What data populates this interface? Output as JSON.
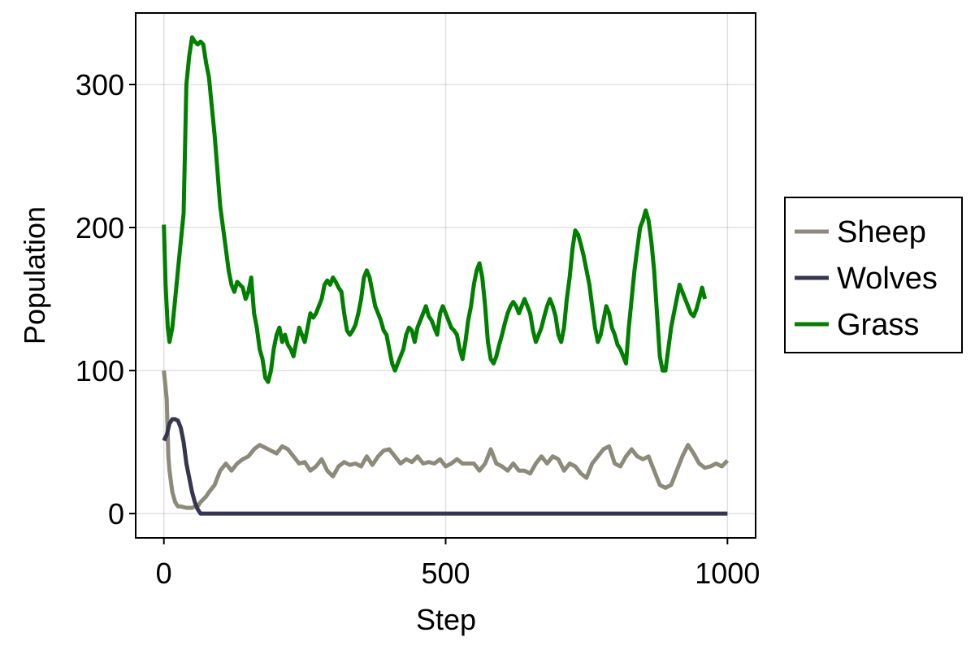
{
  "chart_data": {
    "type": "line",
    "title": "",
    "xlabel": "Step",
    "ylabel": "Population",
    "xlim": [
      -50,
      1050
    ],
    "ylim": [
      -17,
      350
    ],
    "xticks": [
      0,
      500,
      1000
    ],
    "yticks": [
      0,
      100,
      200,
      300
    ],
    "grid": true,
    "legend_position": "right",
    "series": [
      {
        "name": "Sheep",
        "color": "#8c8a7a",
        "points": [
          [
            0,
            100
          ],
          [
            5,
            80
          ],
          [
            8,
            40
          ],
          [
            10,
            30
          ],
          [
            15,
            15
          ],
          [
            20,
            8
          ],
          [
            25,
            5
          ],
          [
            30,
            5
          ],
          [
            40,
            4
          ],
          [
            50,
            4
          ],
          [
            55,
            5
          ],
          [
            60,
            5
          ],
          [
            65,
            8
          ],
          [
            70,
            10
          ],
          [
            75,
            12
          ],
          [
            80,
            15
          ],
          [
            90,
            20
          ],
          [
            100,
            30
          ],
          [
            110,
            35
          ],
          [
            120,
            30
          ],
          [
            130,
            35
          ],
          [
            140,
            38
          ],
          [
            150,
            40
          ],
          [
            160,
            45
          ],
          [
            170,
            48
          ],
          [
            180,
            46
          ],
          [
            190,
            44
          ],
          [
            200,
            42
          ],
          [
            210,
            47
          ],
          [
            220,
            45
          ],
          [
            230,
            40
          ],
          [
            240,
            35
          ],
          [
            250,
            36
          ],
          [
            260,
            30
          ],
          [
            270,
            33
          ],
          [
            280,
            38
          ],
          [
            290,
            30
          ],
          [
            300,
            26
          ],
          [
            310,
            33
          ],
          [
            320,
            36
          ],
          [
            330,
            34
          ],
          [
            340,
            35
          ],
          [
            350,
            33
          ],
          [
            360,
            40
          ],
          [
            370,
            34
          ],
          [
            380,
            40
          ],
          [
            390,
            44
          ],
          [
            400,
            45
          ],
          [
            410,
            40
          ],
          [
            420,
            35
          ],
          [
            430,
            38
          ],
          [
            440,
            36
          ],
          [
            450,
            40
          ],
          [
            460,
            35
          ],
          [
            470,
            36
          ],
          [
            480,
            35
          ],
          [
            490,
            38
          ],
          [
            500,
            33
          ],
          [
            510,
            35
          ],
          [
            520,
            38
          ],
          [
            530,
            35
          ],
          [
            540,
            35
          ],
          [
            550,
            35
          ],
          [
            560,
            30
          ],
          [
            570,
            35
          ],
          [
            580,
            45
          ],
          [
            590,
            35
          ],
          [
            600,
            33
          ],
          [
            610,
            30
          ],
          [
            620,
            35
          ],
          [
            630,
            30
          ],
          [
            640,
            30
          ],
          [
            650,
            28
          ],
          [
            660,
            35
          ],
          [
            670,
            40
          ],
          [
            680,
            35
          ],
          [
            690,
            40
          ],
          [
            700,
            38
          ],
          [
            710,
            30
          ],
          [
            720,
            35
          ],
          [
            730,
            33
          ],
          [
            740,
            28
          ],
          [
            750,
            25
          ],
          [
            760,
            35
          ],
          [
            770,
            40
          ],
          [
            780,
            45
          ],
          [
            790,
            47
          ],
          [
            800,
            35
          ],
          [
            810,
            33
          ],
          [
            820,
            40
          ],
          [
            830,
            45
          ],
          [
            840,
            40
          ],
          [
            850,
            38
          ],
          [
            860,
            40
          ],
          [
            870,
            30
          ],
          [
            880,
            20
          ],
          [
            890,
            18
          ],
          [
            900,
            20
          ],
          [
            910,
            30
          ],
          [
            920,
            40
          ],
          [
            930,
            48
          ],
          [
            940,
            42
          ],
          [
            950,
            35
          ],
          [
            960,
            32
          ],
          [
            970,
            33
          ],
          [
            980,
            35
          ],
          [
            990,
            33
          ],
          [
            1000,
            37
          ]
        ]
      },
      {
        "name": "Wolves",
        "color": "#363650",
        "points": [
          [
            0,
            51
          ],
          [
            5,
            55
          ],
          [
            10,
            63
          ],
          [
            15,
            66
          ],
          [
            20,
            66
          ],
          [
            25,
            65
          ],
          [
            30,
            60
          ],
          [
            35,
            50
          ],
          [
            40,
            35
          ],
          [
            45,
            25
          ],
          [
            50,
            15
          ],
          [
            55,
            8
          ],
          [
            60,
            3
          ],
          [
            65,
            0
          ],
          [
            1000,
            0
          ]
        ]
      },
      {
        "name": "Grass",
        "color": "#007f00",
        "points": [
          [
            0,
            202
          ],
          [
            3,
            160
          ],
          [
            7,
            130
          ],
          [
            10,
            120
          ],
          [
            15,
            130
          ],
          [
            20,
            150
          ],
          [
            25,
            170
          ],
          [
            30,
            190
          ],
          [
            35,
            210
          ],
          [
            40,
            300
          ],
          [
            45,
            320
          ],
          [
            50,
            333
          ],
          [
            55,
            330
          ],
          [
            60,
            328
          ],
          [
            65,
            330
          ],
          [
            70,
            328
          ],
          [
            75,
            315
          ],
          [
            80,
            305
          ],
          [
            85,
            285
          ],
          [
            90,
            265
          ],
          [
            95,
            240
          ],
          [
            100,
            215
          ],
          [
            105,
            200
          ],
          [
            110,
            185
          ],
          [
            115,
            170
          ],
          [
            120,
            160
          ],
          [
            125,
            155
          ],
          [
            130,
            162
          ],
          [
            135,
            160
          ],
          [
            140,
            158
          ],
          [
            145,
            150
          ],
          [
            150,
            155
          ],
          [
            155,
            165
          ],
          [
            160,
            140
          ],
          [
            165,
            130
          ],
          [
            170,
            115
          ],
          [
            175,
            108
          ],
          [
            180,
            95
          ],
          [
            185,
            92
          ],
          [
            190,
            100
          ],
          [
            195,
            115
          ],
          [
            200,
            125
          ],
          [
            205,
            130
          ],
          [
            210,
            120
          ],
          [
            215,
            125
          ],
          [
            220,
            118
          ],
          [
            225,
            115
          ],
          [
            230,
            110
          ],
          [
            235,
            120
          ],
          [
            240,
            130
          ],
          [
            245,
            125
          ],
          [
            250,
            120
          ],
          [
            255,
            130
          ],
          [
            260,
            140
          ],
          [
            265,
            137
          ],
          [
            270,
            140
          ],
          [
            275,
            145
          ],
          [
            280,
            150
          ],
          [
            285,
            160
          ],
          [
            290,
            163
          ],
          [
            295,
            160
          ],
          [
            300,
            165
          ],
          [
            305,
            162
          ],
          [
            310,
            158
          ],
          [
            315,
            155
          ],
          [
            320,
            140
          ],
          [
            325,
            128
          ],
          [
            330,
            125
          ],
          [
            335,
            128
          ],
          [
            340,
            132
          ],
          [
            345,
            140
          ],
          [
            350,
            150
          ],
          [
            355,
            165
          ],
          [
            360,
            170
          ],
          [
            365,
            165
          ],
          [
            370,
            155
          ],
          [
            375,
            145
          ],
          [
            380,
            140
          ],
          [
            385,
            135
          ],
          [
            390,
            128
          ],
          [
            395,
            125
          ],
          [
            400,
            115
          ],
          [
            405,
            105
          ],
          [
            410,
            100
          ],
          [
            415,
            105
          ],
          [
            420,
            110
          ],
          [
            425,
            115
          ],
          [
            430,
            125
          ],
          [
            435,
            130
          ],
          [
            440,
            128
          ],
          [
            445,
            120
          ],
          [
            450,
            130
          ],
          [
            455,
            135
          ],
          [
            460,
            140
          ],
          [
            465,
            145
          ],
          [
            470,
            138
          ],
          [
            475,
            135
          ],
          [
            480,
            130
          ],
          [
            485,
            125
          ],
          [
            490,
            140
          ],
          [
            495,
            145
          ],
          [
            500,
            140
          ],
          [
            505,
            135
          ],
          [
            510,
            130
          ],
          [
            515,
            128
          ],
          [
            520,
            125
          ],
          [
            525,
            115
          ],
          [
            530,
            108
          ],
          [
            535,
            120
          ],
          [
            540,
            135
          ],
          [
            545,
            145
          ],
          [
            550,
            160
          ],
          [
            555,
            170
          ],
          [
            560,
            175
          ],
          [
            565,
            165
          ],
          [
            570,
            145
          ],
          [
            575,
            120
          ],
          [
            580,
            108
          ],
          [
            585,
            105
          ],
          [
            590,
            110
          ],
          [
            595,
            118
          ],
          [
            600,
            125
          ],
          [
            605,
            133
          ],
          [
            610,
            140
          ],
          [
            615,
            145
          ],
          [
            620,
            148
          ],
          [
            625,
            145
          ],
          [
            630,
            140
          ],
          [
            635,
            145
          ],
          [
            640,
            150
          ],
          [
            645,
            145
          ],
          [
            650,
            140
          ],
          [
            655,
            128
          ],
          [
            660,
            120
          ],
          [
            665,
            125
          ],
          [
            670,
            130
          ],
          [
            675,
            138
          ],
          [
            680,
            145
          ],
          [
            685,
            150
          ],
          [
            690,
            145
          ],
          [
            695,
            138
          ],
          [
            700,
            125
          ],
          [
            705,
            120
          ],
          [
            710,
            130
          ],
          [
            715,
            150
          ],
          [
            720,
            165
          ],
          [
            725,
            185
          ],
          [
            730,
            198
          ],
          [
            735,
            195
          ],
          [
            740,
            188
          ],
          [
            745,
            180
          ],
          [
            750,
            170
          ],
          [
            755,
            160
          ],
          [
            760,
            145
          ],
          [
            765,
            130
          ],
          [
            770,
            120
          ],
          [
            775,
            125
          ],
          [
            780,
            135
          ],
          [
            785,
            145
          ],
          [
            790,
            140
          ],
          [
            795,
            130
          ],
          [
            800,
            125
          ],
          [
            805,
            118
          ],
          [
            810,
            115
          ],
          [
            815,
            110
          ],
          [
            820,
            105
          ],
          [
            825,
            130
          ],
          [
            830,
            150
          ],
          [
            835,
            170
          ],
          [
            840,
            185
          ],
          [
            845,
            200
          ],
          [
            850,
            205
          ],
          [
            855,
            212
          ],
          [
            860,
            205
          ],
          [
            865,
            190
          ],
          [
            870,
            170
          ],
          [
            875,
            140
          ],
          [
            880,
            110
          ],
          [
            885,
            100
          ],
          [
            890,
            100
          ],
          [
            895,
            115
          ],
          [
            900,
            130
          ],
          [
            905,
            140
          ],
          [
            910,
            150
          ],
          [
            915,
            160
          ],
          [
            920,
            155
          ],
          [
            925,
            150
          ],
          [
            930,
            145
          ],
          [
            935,
            140
          ],
          [
            940,
            138
          ],
          [
            945,
            143
          ],
          [
            950,
            150
          ],
          [
            955,
            158
          ],
          [
            960,
            150
          ]
        ]
      }
    ]
  }
}
